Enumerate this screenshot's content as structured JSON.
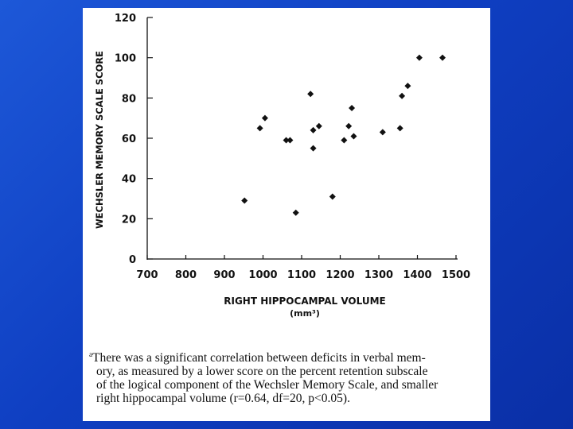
{
  "chart_data": {
    "type": "scatter",
    "title": "",
    "xlabel": "RIGHT HIPPOCAMPAL VOLUME",
    "xlabel_unit": "(mm³)",
    "ylabel": "WECHSLER MEMORY SCALE SCORE",
    "xlim": [
      700,
      1500
    ],
    "ylim": [
      0,
      120
    ],
    "x_ticks": [
      "700",
      "800",
      "900",
      "1000",
      "1100",
      "1200",
      "1300",
      "1400",
      "1500"
    ],
    "y_ticks": [
      "0",
      "20",
      "40",
      "60",
      "80",
      "100",
      "120"
    ],
    "grid": false,
    "points": [
      {
        "x": 952,
        "y": 29
      },
      {
        "x": 992,
        "y": 65
      },
      {
        "x": 1005,
        "y": 70
      },
      {
        "x": 1060,
        "y": 59
      },
      {
        "x": 1070,
        "y": 59
      },
      {
        "x": 1085,
        "y": 23
      },
      {
        "x": 1123,
        "y": 82
      },
      {
        "x": 1130,
        "y": 64
      },
      {
        "x": 1130,
        "y": 55
      },
      {
        "x": 1145,
        "y": 66
      },
      {
        "x": 1180,
        "y": 31
      },
      {
        "x": 1210,
        "y": 59
      },
      {
        "x": 1222,
        "y": 66
      },
      {
        "x": 1230,
        "y": 75
      },
      {
        "x": 1235,
        "y": 61
      },
      {
        "x": 1310,
        "y": 63
      },
      {
        "x": 1355,
        "y": 65
      },
      {
        "x": 1360,
        "y": 81
      },
      {
        "x": 1375,
        "y": 86
      },
      {
        "x": 1405,
        "y": 100
      },
      {
        "x": 1465,
        "y": 100
      }
    ]
  },
  "caption": {
    "marker": "a",
    "lines": [
      "There was a significant correlation between deficits in verbal mem-",
      "ory, as measured by a lower score on the percent retention subscale",
      "of the logical component of the Wechsler Memory Scale, and smaller",
      "right hippocampal volume (r=0.64, df=20, p<0.05)."
    ]
  }
}
